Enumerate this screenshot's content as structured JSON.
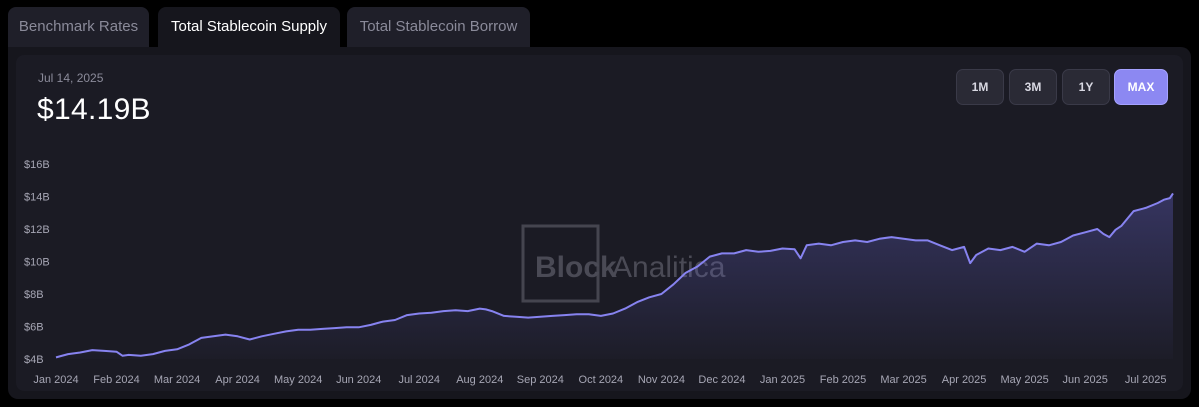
{
  "tabs": [
    {
      "label": "Benchmark Rates",
      "active": false
    },
    {
      "label": "Total Stablecoin Supply",
      "active": true
    },
    {
      "label": "Total Stablecoin Borrow",
      "active": false
    }
  ],
  "header": {
    "date": "Jul 14, 2025",
    "value": "$14.19B"
  },
  "range_buttons": [
    {
      "label": "1M",
      "active": false
    },
    {
      "label": "3M",
      "active": false
    },
    {
      "label": "1Y",
      "active": false
    },
    {
      "label": "MAX",
      "active": true
    }
  ],
  "watermark": {
    "bold": "Block",
    "light": "Analitica"
  },
  "colors": {
    "line": "#8783f0",
    "accent": "#8c88f2",
    "background": "#1b1b24"
  },
  "chart_data": {
    "type": "area",
    "title": "",
    "xlabel": "",
    "ylabel": "",
    "ylim": [
      4,
      16
    ],
    "y_ticks": [
      4,
      6,
      8,
      10,
      12,
      14,
      16
    ],
    "y_tick_labels": [
      "$4B",
      "$6B",
      "$8B",
      "$10B",
      "$12B",
      "$14B",
      "$16B"
    ],
    "x_tick_labels": [
      "Jan 2024",
      "Feb 2024",
      "Mar 2024",
      "Apr 2024",
      "May 2024",
      "Jun 2024",
      "Jul 2024",
      "Aug 2024",
      "Sep 2024",
      "Oct 2024",
      "Nov 2024",
      "Dec 2024",
      "Jan 2025",
      "Feb 2025",
      "Mar 2025",
      "Apr 2025",
      "May 2025",
      "Jun 2025",
      "Jul 2025"
    ],
    "x_tick_months": [
      0,
      1,
      2,
      3,
      4,
      5,
      6,
      7,
      8,
      9,
      10,
      11,
      12,
      13,
      14,
      15,
      16,
      17,
      18
    ],
    "xlim": [
      0,
      18.5
    ],
    "grid": false,
    "series": [
      {
        "values_unit": "billions USD",
        "x": [
          0.0,
          0.2,
          0.4,
          0.6,
          0.8,
          1.0,
          1.1,
          1.2,
          1.4,
          1.6,
          1.8,
          2.0,
          2.2,
          2.4,
          2.6,
          2.8,
          3.0,
          3.2,
          3.4,
          3.6,
          3.8,
          4.0,
          4.2,
          4.4,
          4.6,
          4.8,
          5.0,
          5.2,
          5.4,
          5.6,
          5.8,
          6.0,
          6.2,
          6.4,
          6.6,
          6.8,
          7.0,
          7.1,
          7.2,
          7.4,
          7.6,
          7.8,
          8.0,
          8.2,
          8.4,
          8.6,
          8.8,
          9.0,
          9.2,
          9.4,
          9.6,
          9.8,
          10.0,
          10.2,
          10.4,
          10.6,
          10.8,
          11.0,
          11.2,
          11.4,
          11.6,
          11.8,
          12.0,
          12.2,
          12.3,
          12.4,
          12.6,
          12.8,
          13.0,
          13.2,
          13.4,
          13.6,
          13.8,
          14.0,
          14.2,
          14.4,
          14.6,
          14.8,
          15.0,
          15.1,
          15.2,
          15.4,
          15.6,
          15.8,
          16.0,
          16.2,
          16.4,
          16.6,
          16.8,
          17.0,
          17.2,
          17.3,
          17.4,
          17.5,
          17.6,
          17.8,
          18.0,
          18.2,
          18.3,
          18.4,
          18.45
        ],
        "values": [
          4.1,
          4.3,
          4.4,
          4.55,
          4.5,
          4.45,
          4.2,
          4.25,
          4.2,
          4.3,
          4.5,
          4.6,
          4.9,
          5.3,
          5.4,
          5.5,
          5.4,
          5.2,
          5.4,
          5.55,
          5.7,
          5.8,
          5.8,
          5.85,
          5.9,
          5.95,
          5.95,
          6.1,
          6.3,
          6.4,
          6.7,
          6.8,
          6.85,
          6.95,
          7.0,
          6.95,
          7.1,
          7.05,
          6.95,
          6.65,
          6.6,
          6.55,
          6.6,
          6.65,
          6.7,
          6.75,
          6.75,
          6.65,
          6.8,
          7.1,
          7.5,
          7.8,
          8.0,
          8.6,
          9.3,
          9.7,
          10.3,
          10.5,
          10.5,
          10.7,
          10.6,
          10.65,
          10.8,
          10.75,
          10.2,
          11.0,
          11.1,
          11.0,
          11.2,
          11.3,
          11.2,
          11.4,
          11.5,
          11.4,
          11.3,
          11.3,
          11.0,
          10.7,
          10.9,
          9.9,
          10.4,
          10.8,
          10.7,
          10.9,
          10.6,
          11.1,
          11.0,
          11.2,
          11.6,
          11.8,
          12.0,
          11.7,
          11.5,
          11.95,
          12.2,
          13.1,
          13.3,
          13.6,
          13.8,
          13.9,
          14.19
        ]
      }
    ]
  }
}
